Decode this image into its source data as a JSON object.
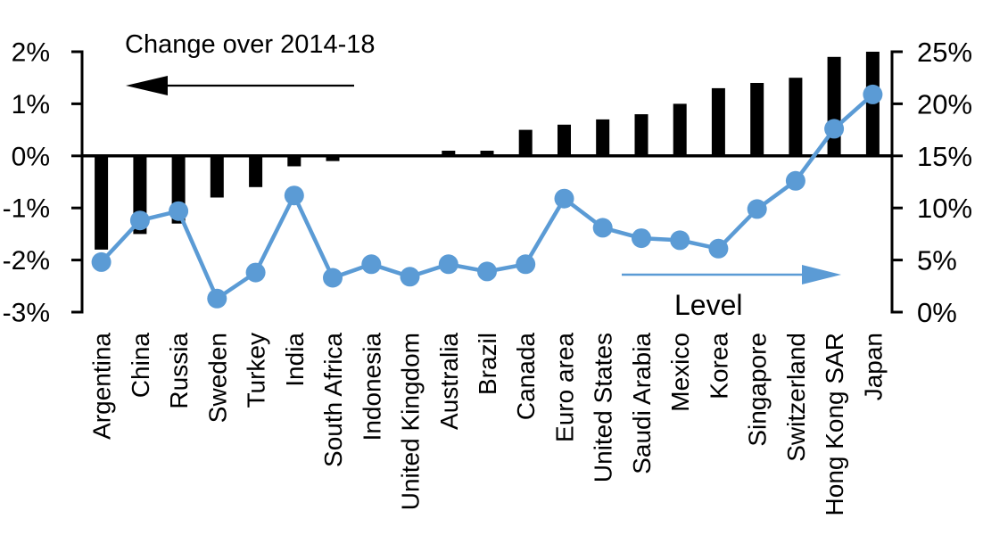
{
  "colors": {
    "bar": "#000000",
    "line": "#5b9bd5",
    "axis": "#000000",
    "text": "#000000",
    "background": "#ffffff"
  },
  "chart_data": {
    "type": "combo-bar-line",
    "categories": [
      "Argentina",
      "China",
      "Russia",
      "Sweden",
      "Turkey",
      "India",
      "South Africa",
      "Indonesia",
      "United Kingdom",
      "Australia",
      "Brazil",
      "Canada",
      "Euro area",
      "United States",
      "Saudi Arabia",
      "Mexico",
      "Korea",
      "Singapore",
      "Switzerland",
      "Hong Kong SAR",
      "Japan"
    ],
    "series": [
      {
        "name": "Change over 2014-18",
        "type": "bar",
        "axis": "left",
        "unit": "%",
        "values": [
          -1.8,
          -1.5,
          -1.3,
          -0.8,
          -0.6,
          -0.2,
          -0.1,
          0,
          0,
          0.1,
          0.1,
          0.5,
          0.6,
          0.7,
          0.8,
          1.0,
          1.3,
          1.4,
          1.5,
          1.9,
          2.0
        ]
      },
      {
        "name": "Level",
        "type": "line",
        "axis": "right",
        "unit": "%",
        "values": [
          4.8,
          8.8,
          9.7,
          1.3,
          3.8,
          11.2,
          3.3,
          4.6,
          3.4,
          4.6,
          3.9,
          4.6,
          10.9,
          8.1,
          7.1,
          6.9,
          6.1,
          9.9,
          12.6,
          17.6,
          20.9
        ]
      }
    ],
    "left_axis": {
      "range": [
        -3,
        2
      ],
      "ticks": [
        2,
        1,
        0,
        -1,
        -2,
        -3
      ],
      "tick_labels": [
        "2%",
        "1%",
        "0%",
        "-1%",
        "-2%",
        "-3%"
      ]
    },
    "right_axis": {
      "range": [
        0,
        25
      ],
      "ticks": [
        25,
        20,
        15,
        10,
        5,
        0
      ],
      "tick_labels": [
        "25%",
        "20%",
        "15%",
        "10%",
        "5%",
        "0%"
      ]
    },
    "grid": false,
    "annotations": [
      {
        "text": "Change over 2014-18",
        "arrow_direction": "left",
        "color": "#000000"
      },
      {
        "text": "Level",
        "arrow_direction": "right",
        "color": "#5b9bd5"
      }
    ]
  }
}
